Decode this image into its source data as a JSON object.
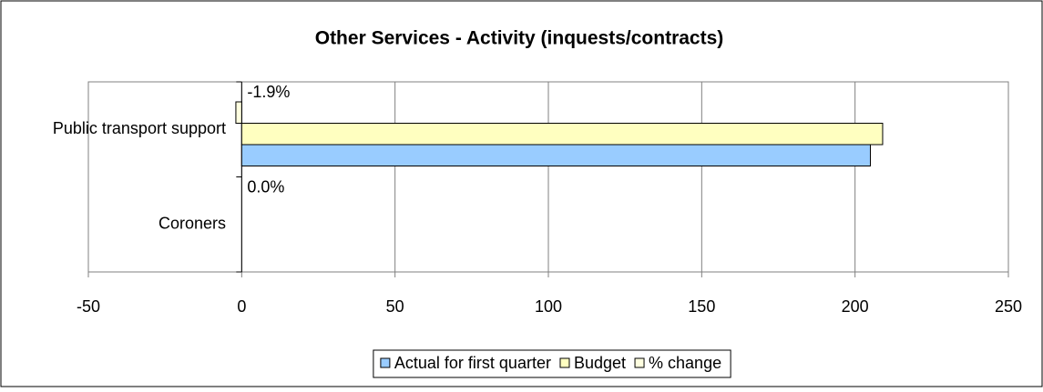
{
  "chart_data": {
    "type": "hbar",
    "title": "Other Services - Activity (inquests/contracts)",
    "categories": [
      "Coroners",
      "Public transport support"
    ],
    "series": [
      {
        "name": "Actual for first quarter",
        "color": "#99ccff",
        "values": [
          0,
          205
        ]
      },
      {
        "name": "Budget",
        "color": "#ffffc0",
        "values": [
          0,
          209
        ]
      },
      {
        "name": "% change",
        "color": "#ffffe0",
        "values": [
          0.0,
          -1.9
        ],
        "value_labels": [
          "0.0%",
          "-1.9%"
        ]
      }
    ],
    "xlim": [
      -50,
      250
    ],
    "xticks": [
      -50,
      0,
      50,
      100,
      150,
      200,
      250
    ],
    "grid": true,
    "legend": "bottom"
  }
}
